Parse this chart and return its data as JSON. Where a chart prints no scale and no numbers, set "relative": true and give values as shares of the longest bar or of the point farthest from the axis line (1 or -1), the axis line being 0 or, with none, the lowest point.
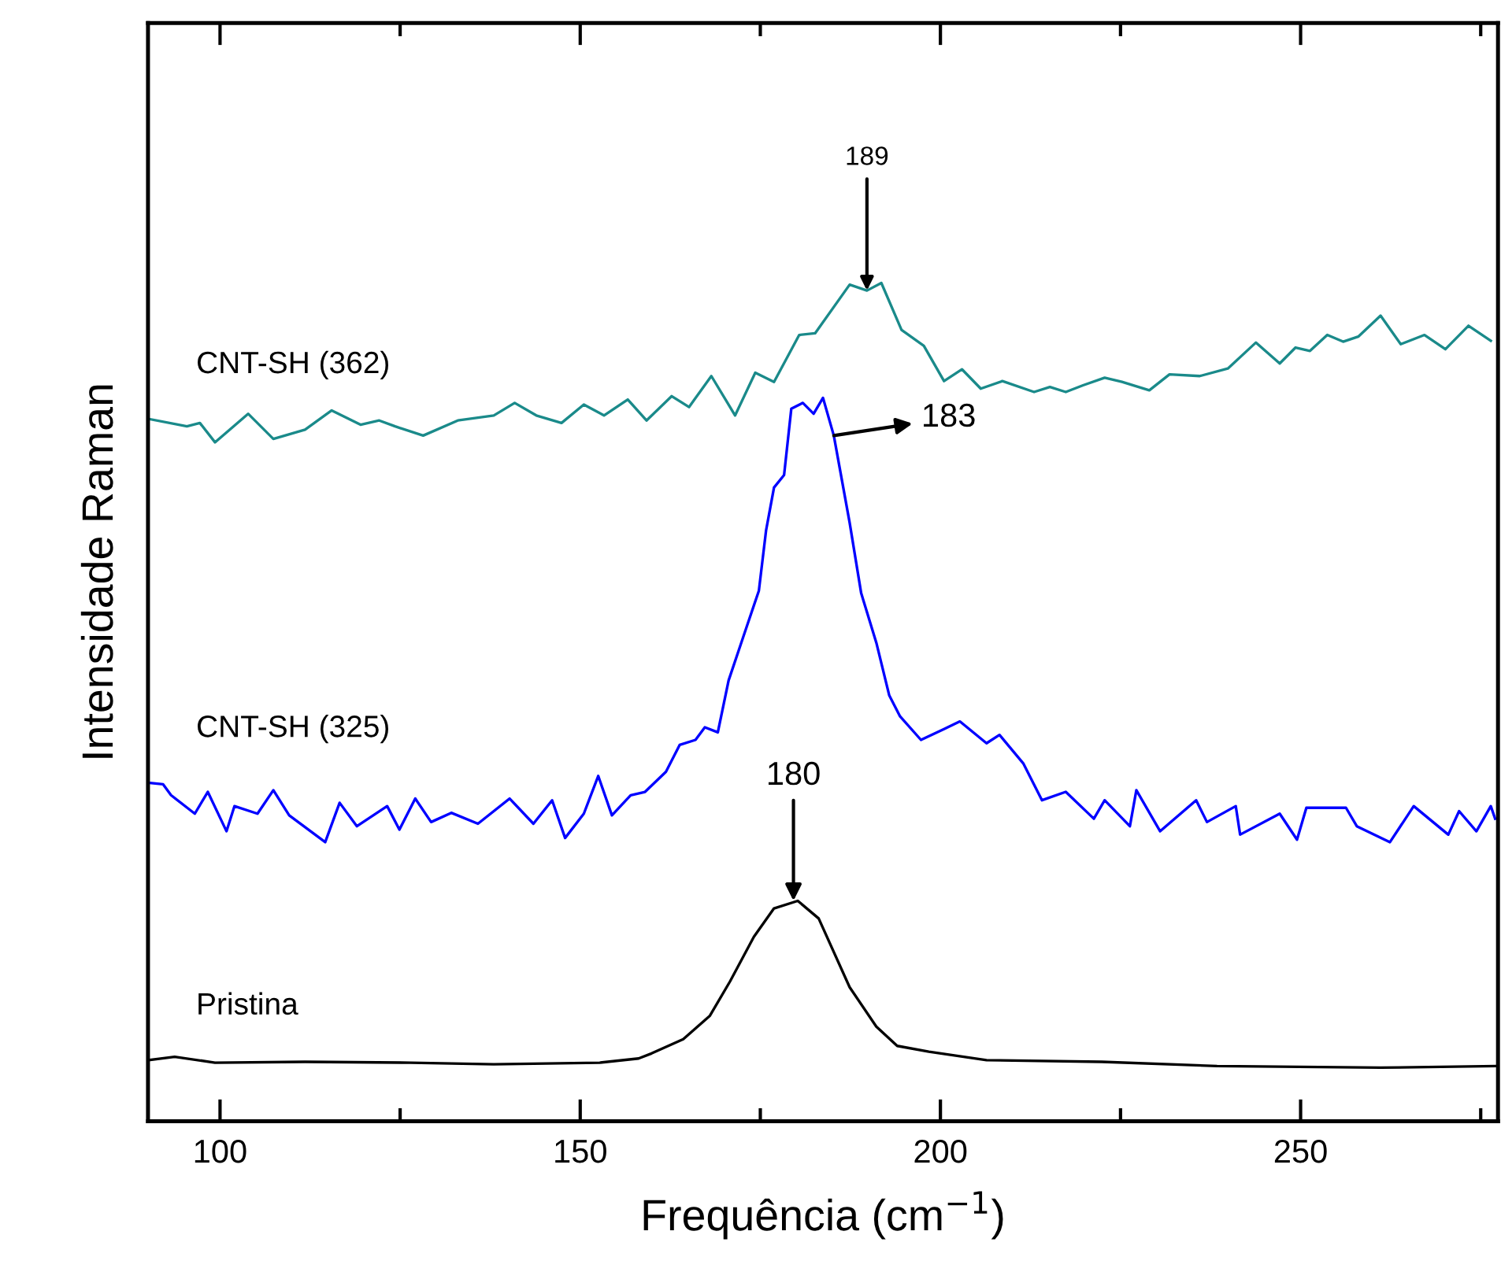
{
  "chart_data": {
    "type": "line",
    "xlabel": "Frequência (cm$^{−1}$)",
    "ylabel": "Intensidade Raman",
    "relative": true,
    "xlim": [
      90,
      277.4
    ],
    "xticks": [
      100,
      {
        "value": 125,
        "label": null
      },
      150,
      {
        "value": 175,
        "label": null
      },
      200,
      {
        "value": 225,
        "label": null
      },
      250,
      {
        "value": 275,
        "label": null
      }
    ],
    "grid": false,
    "legend": false,
    "marker": "none",
    "line_style": "solid",
    "series": [
      {
        "name": "CNT-SH (362)",
        "color": "#1a8a8a",
        "x": [
          90.0,
          95.4,
          97.2,
          99.3,
          103.9,
          107.4,
          111.8,
          115.5,
          119.5,
          122.1,
          124.3,
          128.2,
          133.0,
          138.0,
          140.9,
          143.9,
          147.4,
          150.5,
          153.3,
          156.6,
          159.2,
          162.7,
          165.1,
          168.2,
          171.5,
          174.3,
          176.9,
          180.4,
          182.6,
          187.4,
          189.8,
          191.8,
          194.6,
          197.7,
          200.5,
          203.0,
          205.6,
          208.6,
          213.0,
          215.2,
          217.4,
          219.8,
          222.8,
          225.2,
          229.0,
          231.8,
          236.0,
          239.9,
          243.8,
          247.1,
          249.3,
          251.3,
          253.7,
          255.9,
          258.0,
          261.1,
          263.9,
          267.2,
          270.1,
          273.3,
          276.4
        ],
        "values": [
          0.838,
          0.829,
          0.833,
          0.81,
          0.844,
          0.814,
          0.825,
          0.848,
          0.831,
          0.836,
          0.829,
          0.818,
          0.836,
          0.842,
          0.857,
          0.842,
          0.833,
          0.855,
          0.842,
          0.861,
          0.836,
          0.865,
          0.852,
          0.889,
          0.842,
          0.893,
          0.882,
          0.938,
          0.94,
          0.998,
          0.991,
          1.0,
          0.944,
          0.925,
          0.883,
          0.897,
          0.874,
          0.883,
          0.87,
          0.876,
          0.87,
          0.878,
          0.887,
          0.882,
          0.872,
          0.891,
          0.889,
          0.898,
          0.929,
          0.904,
          0.923,
          0.919,
          0.938,
          0.93,
          0.936,
          0.961,
          0.927,
          0.938,
          0.921,
          0.949,
          0.931
        ]
      },
      {
        "name": "CNT-SH (325)",
        "color": "#0000ff",
        "x": [
          90.0,
          92.1,
          93.2,
          96.5,
          98.3,
          100.9,
          102.0,
          105.2,
          107.4,
          109.6,
          114.6,
          116.6,
          119.0,
          123.2,
          124.9,
          127.1,
          129.3,
          132.1,
          135.8,
          140.2,
          143.5,
          146.1,
          147.9,
          150.5,
          152.5,
          154.4,
          157.0,
          159.0,
          161.9,
          163.8,
          166.0,
          167.3,
          169.1,
          170.6,
          172.6,
          174.8,
          175.8,
          176.9,
          178.3,
          179.3,
          180.9,
          182.4,
          183.7,
          185.2,
          187.4,
          189.0,
          191.1,
          192.9,
          194.4,
          197.3,
          200.5,
          202.7,
          206.4,
          208.2,
          211.5,
          214.1,
          217.4,
          221.3,
          222.8,
          226.3,
          227.2,
          230.5,
          235.5,
          237.0,
          241.0,
          241.6,
          247.1,
          249.5,
          250.8,
          256.3,
          257.8,
          262.4,
          265.7,
          270.5,
          272.0,
          274.4,
          276.4,
          277.0
        ],
        "values": [
          0.404,
          0.402,
          0.389,
          0.367,
          0.393,
          0.346,
          0.376,
          0.367,
          0.395,
          0.365,
          0.333,
          0.38,
          0.352,
          0.376,
          0.348,
          0.385,
          0.357,
          0.368,
          0.355,
          0.385,
          0.355,
          0.383,
          0.338,
          0.367,
          0.412,
          0.365,
          0.389,
          0.393,
          0.417,
          0.449,
          0.455,
          0.47,
          0.464,
          0.526,
          0.577,
          0.633,
          0.705,
          0.756,
          0.771,
          0.85,
          0.857,
          0.844,
          0.863,
          0.818,
          0.714,
          0.63,
          0.571,
          0.508,
          0.483,
          0.455,
          0.468,
          0.477,
          0.451,
          0.461,
          0.427,
          0.383,
          0.393,
          0.361,
          0.383,
          0.352,
          0.395,
          0.346,
          0.383,
          0.357,
          0.376,
          0.342,
          0.367,
          0.336,
          0.374,
          0.374,
          0.352,
          0.333,
          0.376,
          0.342,
          0.37,
          0.346,
          0.376,
          0.361
        ]
      },
      {
        "name": "Pristina",
        "color": "#000000",
        "x": [
          90.0,
          93.7,
          99.3,
          111.8,
          126.4,
          138.0,
          152.7,
          158.1,
          159.9,
          164.3,
          168.0,
          170.8,
          174.1,
          176.9,
          180.2,
          183.1,
          187.4,
          191.1,
          194.0,
          198.4,
          206.4,
          222.4,
          238.4,
          261.1,
          277.0
        ],
        "values": [
          0.073,
          0.077,
          0.07,
          0.071,
          0.07,
          0.068,
          0.07,
          0.075,
          0.081,
          0.098,
          0.126,
          0.167,
          0.22,
          0.254,
          0.263,
          0.242,
          0.16,
          0.113,
          0.09,
          0.083,
          0.073,
          0.071,
          0.066,
          0.064,
          0.066
        ]
      }
    ],
    "annotations": [
      {
        "text": "189",
        "x": 189.8,
        "y": 0.991
      },
      {
        "text": "183",
        "x": 185.2,
        "y": 0.818
      },
      {
        "text": "180",
        "x": 179.6,
        "y": 0.263
      }
    ]
  }
}
